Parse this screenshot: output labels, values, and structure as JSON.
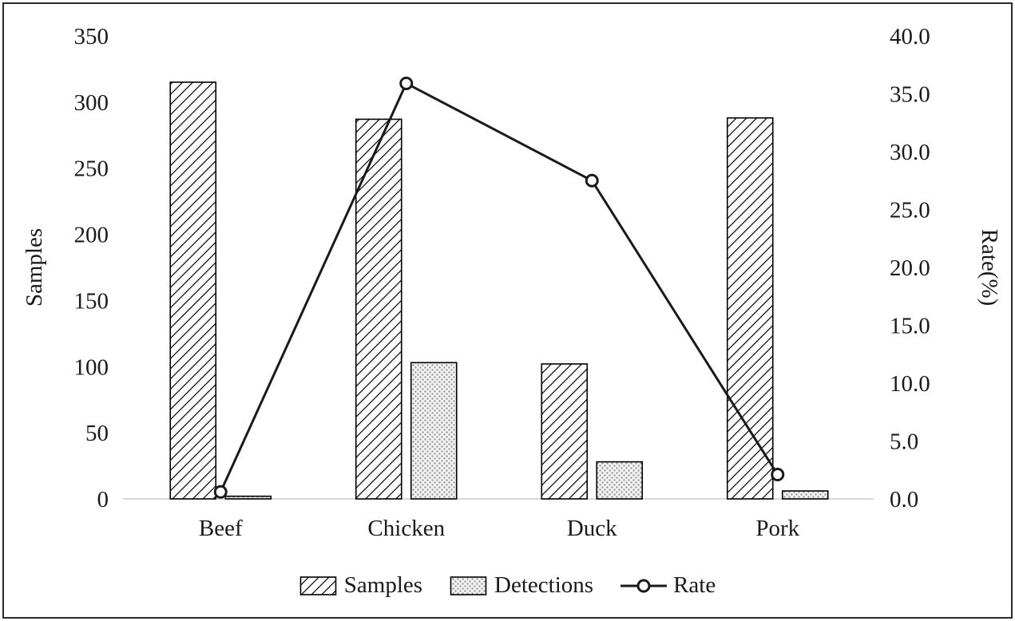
{
  "chart_data": {
    "type": "bar",
    "subtype": "grouped-bars-with-line-overlay",
    "categories": [
      "Beef",
      "Chicken",
      "Duck",
      "Pork"
    ],
    "series": [
      {
        "name": "Samples",
        "type": "bar",
        "axis": "left",
        "pattern": "diagonal-hatch",
        "values": [
          315,
          287,
          102,
          288
        ]
      },
      {
        "name": "Detections",
        "type": "bar",
        "axis": "left",
        "pattern": "dot-stipple",
        "values": [
          2,
          103,
          28,
          6
        ]
      },
      {
        "name": "Rate",
        "type": "line",
        "axis": "right",
        "marker": "open-circle",
        "values": [
          0.6,
          35.9,
          27.5,
          2.1
        ]
      }
    ],
    "left_axis": {
      "label": "Samples",
      "min": 0,
      "max": 350,
      "step": 50,
      "ticks": [
        "0",
        "50",
        "100",
        "150",
        "200",
        "250",
        "300",
        "350"
      ]
    },
    "right_axis": {
      "label": "Rate(%)",
      "min": 0,
      "max": 40,
      "step": 5,
      "ticks": [
        "0.0",
        "5.0",
        "10.0",
        "15.0",
        "20.0",
        "25.0",
        "30.0",
        "35.0",
        "40.0"
      ]
    },
    "legend": [
      "Samples",
      "Detections",
      "Rate"
    ],
    "legend_position": "bottom",
    "grid": "off",
    "colors": {
      "bar_stroke": "#000000",
      "line": "#1a1a1a",
      "marker_fill": "#ffffff",
      "text": "#1a1a1a",
      "baseline": "#d9d9d9",
      "stipple_bg": "#f2f2f2",
      "stipple_dot": "#8c8c8c",
      "background": "#ffffff"
    }
  }
}
